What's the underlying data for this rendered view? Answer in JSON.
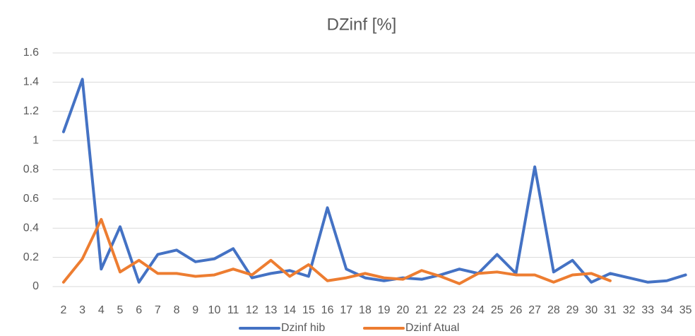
{
  "chart_data": {
    "type": "line",
    "title": "DZinf [%]",
    "categories": [
      2,
      3,
      4,
      5,
      6,
      7,
      8,
      9,
      10,
      11,
      12,
      13,
      14,
      15,
      16,
      17,
      18,
      19,
      20,
      21,
      22,
      23,
      24,
      25,
      26,
      27,
      28,
      29,
      30,
      31,
      32,
      33,
      34,
      35
    ],
    "series": [
      {
        "name": "Dzinf hib",
        "color": "#4472c4",
        "values": [
          1.06,
          1.42,
          0.12,
          0.41,
          0.03,
          0.22,
          0.25,
          0.17,
          0.19,
          0.26,
          0.06,
          0.09,
          0.11,
          0.07,
          0.54,
          0.12,
          0.06,
          0.04,
          0.06,
          0.05,
          0.08,
          0.12,
          0.09,
          0.22,
          0.09,
          0.82,
          0.1,
          0.18,
          0.03,
          0.09,
          0.06,
          0.03,
          0.04,
          0.08
        ]
      },
      {
        "name": "Dzinf Atual",
        "color": "#ed7d31",
        "values": [
          0.03,
          0.19,
          0.46,
          0.1,
          0.18,
          0.09,
          0.09,
          0.07,
          0.08,
          0.12,
          0.08,
          0.18,
          0.07,
          0.15,
          0.04,
          0.06,
          0.09,
          0.06,
          0.05,
          0.11,
          0.07,
          0.02,
          0.09,
          0.1,
          0.08,
          0.08,
          0.03,
          0.08,
          0.09,
          0.04,
          null,
          null,
          null,
          null
        ]
      }
    ],
    "ylim": [
      0,
      1.6
    ],
    "yticks": [
      0,
      0.2,
      0.4,
      0.6,
      0.8,
      1,
      1.2,
      1.4,
      1.6
    ],
    "grid": true,
    "legend": "bottom"
  }
}
